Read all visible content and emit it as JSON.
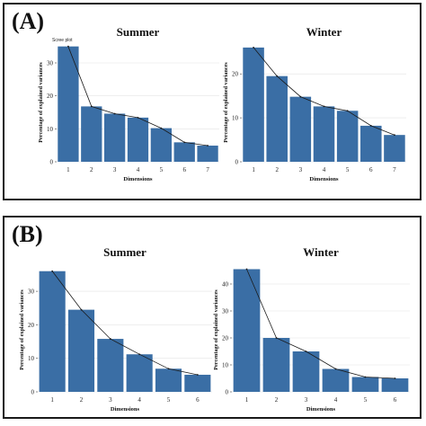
{
  "panels": [
    {
      "label": "(A)"
    },
    {
      "label": "(B)"
    }
  ],
  "scree_caption": "Scree plot",
  "colors": {
    "bar": "#3a6ea5",
    "line": "#1a1a1a",
    "grid": "#e3e3e3",
    "frame": "#1a1a1a"
  },
  "chart_data": [
    {
      "type": "bar",
      "panel": "(A)",
      "title": "Summer",
      "xlabel": "Dimensions",
      "ylabel": "Percentage of explained variances",
      "categories": [
        "1",
        "2",
        "3",
        "4",
        "5",
        "6",
        "7"
      ],
      "values": [
        35.0,
        16.8,
        14.6,
        13.4,
        10.2,
        5.9,
        4.9
      ],
      "ylim": [
        0,
        36
      ],
      "yticks": [
        0,
        10,
        20,
        30
      ],
      "overlay": "line-through-bar-tops"
    },
    {
      "type": "bar",
      "panel": "(A)",
      "title": "Winter",
      "xlabel": "Dimensions",
      "ylabel": "Percentage of explained variances",
      "categories": [
        "1",
        "2",
        "3",
        "4",
        "5",
        "6",
        "7"
      ],
      "values": [
        26.0,
        19.5,
        14.8,
        12.6,
        11.6,
        8.2,
        6.1
      ],
      "ylim": [
        0,
        27
      ],
      "yticks": [
        0,
        10,
        20
      ],
      "overlay": "line-through-bar-tops"
    },
    {
      "type": "bar",
      "panel": "(B)",
      "title": "Summer",
      "xlabel": "Dimensions",
      "ylabel": "Percentage of explained variances",
      "categories": [
        "1",
        "2",
        "3",
        "4",
        "5",
        "6"
      ],
      "values": [
        36.0,
        24.5,
        15.8,
        11.2,
        6.9,
        5.1
      ],
      "ylim": [
        0,
        37
      ],
      "yticks": [
        0,
        10,
        20,
        30
      ],
      "overlay": "line-through-bar-tops"
    },
    {
      "type": "bar",
      "panel": "(B)",
      "title": "Winter",
      "xlabel": "Dimensions",
      "ylabel": "Percentage of explained variances",
      "categories": [
        "1",
        "2",
        "3",
        "4",
        "5",
        "6"
      ],
      "values": [
        45.5,
        20.0,
        15.0,
        8.5,
        5.5,
        5.0
      ],
      "ylim": [
        0,
        46
      ],
      "yticks": [
        0,
        10,
        20,
        30,
        40
      ],
      "overlay": "line-through-bar-tops"
    }
  ]
}
